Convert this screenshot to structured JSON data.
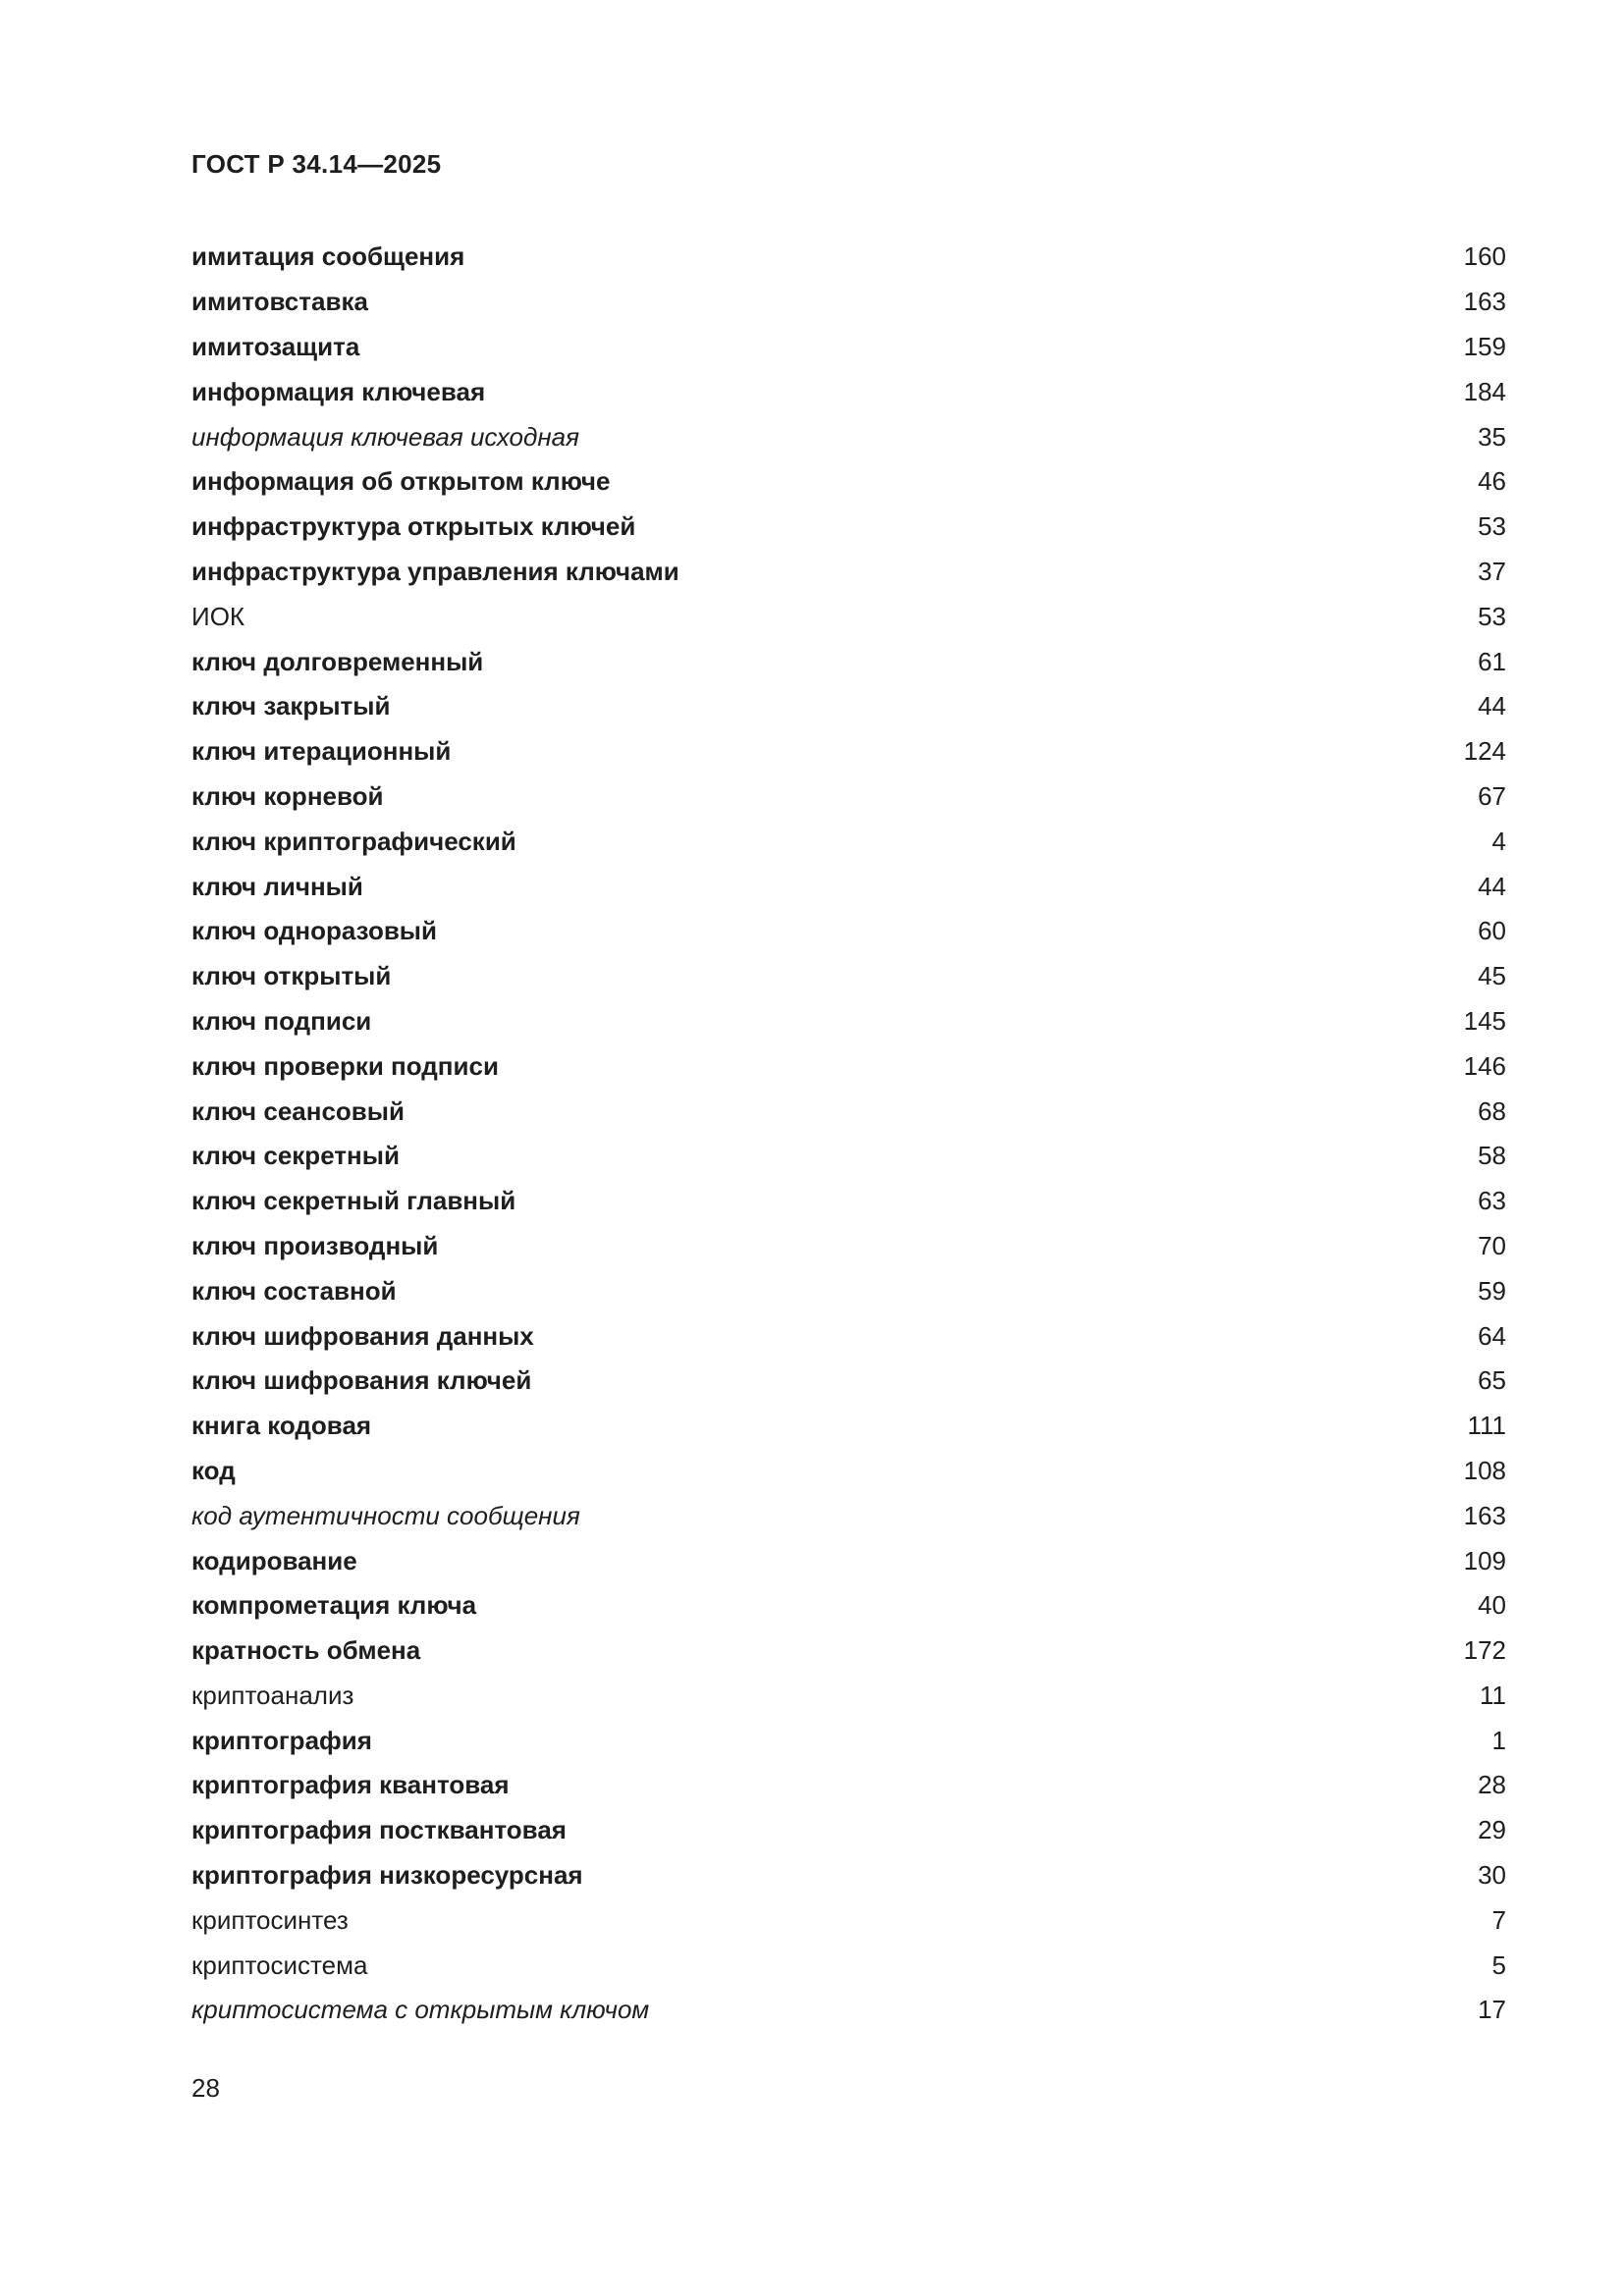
{
  "header": {
    "title": "ГОСТ Р 34.14—2025"
  },
  "footer": {
    "page_number": "28"
  },
  "index_entries": [
    {
      "term": "имитация сообщения",
      "page": "160",
      "style": "bold"
    },
    {
      "term": "имитовставка",
      "page": "163",
      "style": "bold"
    },
    {
      "term": "имитозащита",
      "page": "159",
      "style": "bold"
    },
    {
      "term": "информация ключевая",
      "page": "184",
      "style": "bold"
    },
    {
      "term": "информация ключевая исходная",
      "page": "35",
      "style": "italic"
    },
    {
      "term": "информация об открытом ключе",
      "page": "46",
      "style": "bold"
    },
    {
      "term": "инфраструктура открытых ключей",
      "page": "53",
      "style": "bold"
    },
    {
      "term": "инфраструктура управления ключами",
      "page": "37",
      "style": "bold"
    },
    {
      "term": "ИОК",
      "page": "53",
      "style": "regular"
    },
    {
      "term": "ключ долговременный",
      "page": "61",
      "style": "bold"
    },
    {
      "term": "ключ закрытый",
      "page": "44",
      "style": "bold"
    },
    {
      "term": "ключ итерационный",
      "page": "124",
      "style": "bold"
    },
    {
      "term": "ключ корневой",
      "page": "67",
      "style": "bold"
    },
    {
      "term": "ключ криптографический",
      "page": "4",
      "style": "bold"
    },
    {
      "term": "ключ личный",
      "page": "44",
      "style": "bold"
    },
    {
      "term": "ключ одноразовый",
      "page": "60",
      "style": "bold"
    },
    {
      "term": "ключ открытый",
      "page": "45",
      "style": "bold"
    },
    {
      "term": "ключ подписи",
      "page": "145",
      "style": "bold"
    },
    {
      "term": "ключ проверки подписи",
      "page": "146",
      "style": "bold"
    },
    {
      "term": "ключ сеансовый",
      "page": "68",
      "style": "bold"
    },
    {
      "term": "ключ секретный",
      "page": "58",
      "style": "bold"
    },
    {
      "term": "ключ секретный главный",
      "page": "63",
      "style": "bold"
    },
    {
      "term": "ключ производный",
      "page": "70",
      "style": "bold"
    },
    {
      "term": "ключ составной",
      "page": "59",
      "style": "bold"
    },
    {
      "term": "ключ шифрования данных",
      "page": "64",
      "style": "bold"
    },
    {
      "term": "ключ шифрования ключей",
      "page": "65",
      "style": "bold"
    },
    {
      "term": "книга кодовая",
      "page": "111",
      "style": "bold"
    },
    {
      "term": "код",
      "page": "108",
      "style": "bold"
    },
    {
      "term": "код аутентичности сообщения",
      "page": "163",
      "style": "italic"
    },
    {
      "term": "кодирование",
      "page": "109",
      "style": "bold"
    },
    {
      "term": "компрометация ключа",
      "page": "40",
      "style": "bold"
    },
    {
      "term": "кратность обмена",
      "page": "172",
      "style": "bold"
    },
    {
      "term": "криптоанализ",
      "page": "11",
      "style": "regular"
    },
    {
      "term": "криптография",
      "page": "1",
      "style": "bold"
    },
    {
      "term": "криптография квантовая",
      "page": "28",
      "style": "bold"
    },
    {
      "term": "криптография постквантовая",
      "page": "29",
      "style": "bold"
    },
    {
      "term": "криптография низкоресурсная",
      "page": "30",
      "style": "bold"
    },
    {
      "term": "криптосинтез",
      "page": "7",
      "style": "regular"
    },
    {
      "term": "криптосистема",
      "page": "5",
      "style": "regular"
    },
    {
      "term": "криптосистема с открытым ключом",
      "page": "17",
      "style": "italic"
    }
  ]
}
